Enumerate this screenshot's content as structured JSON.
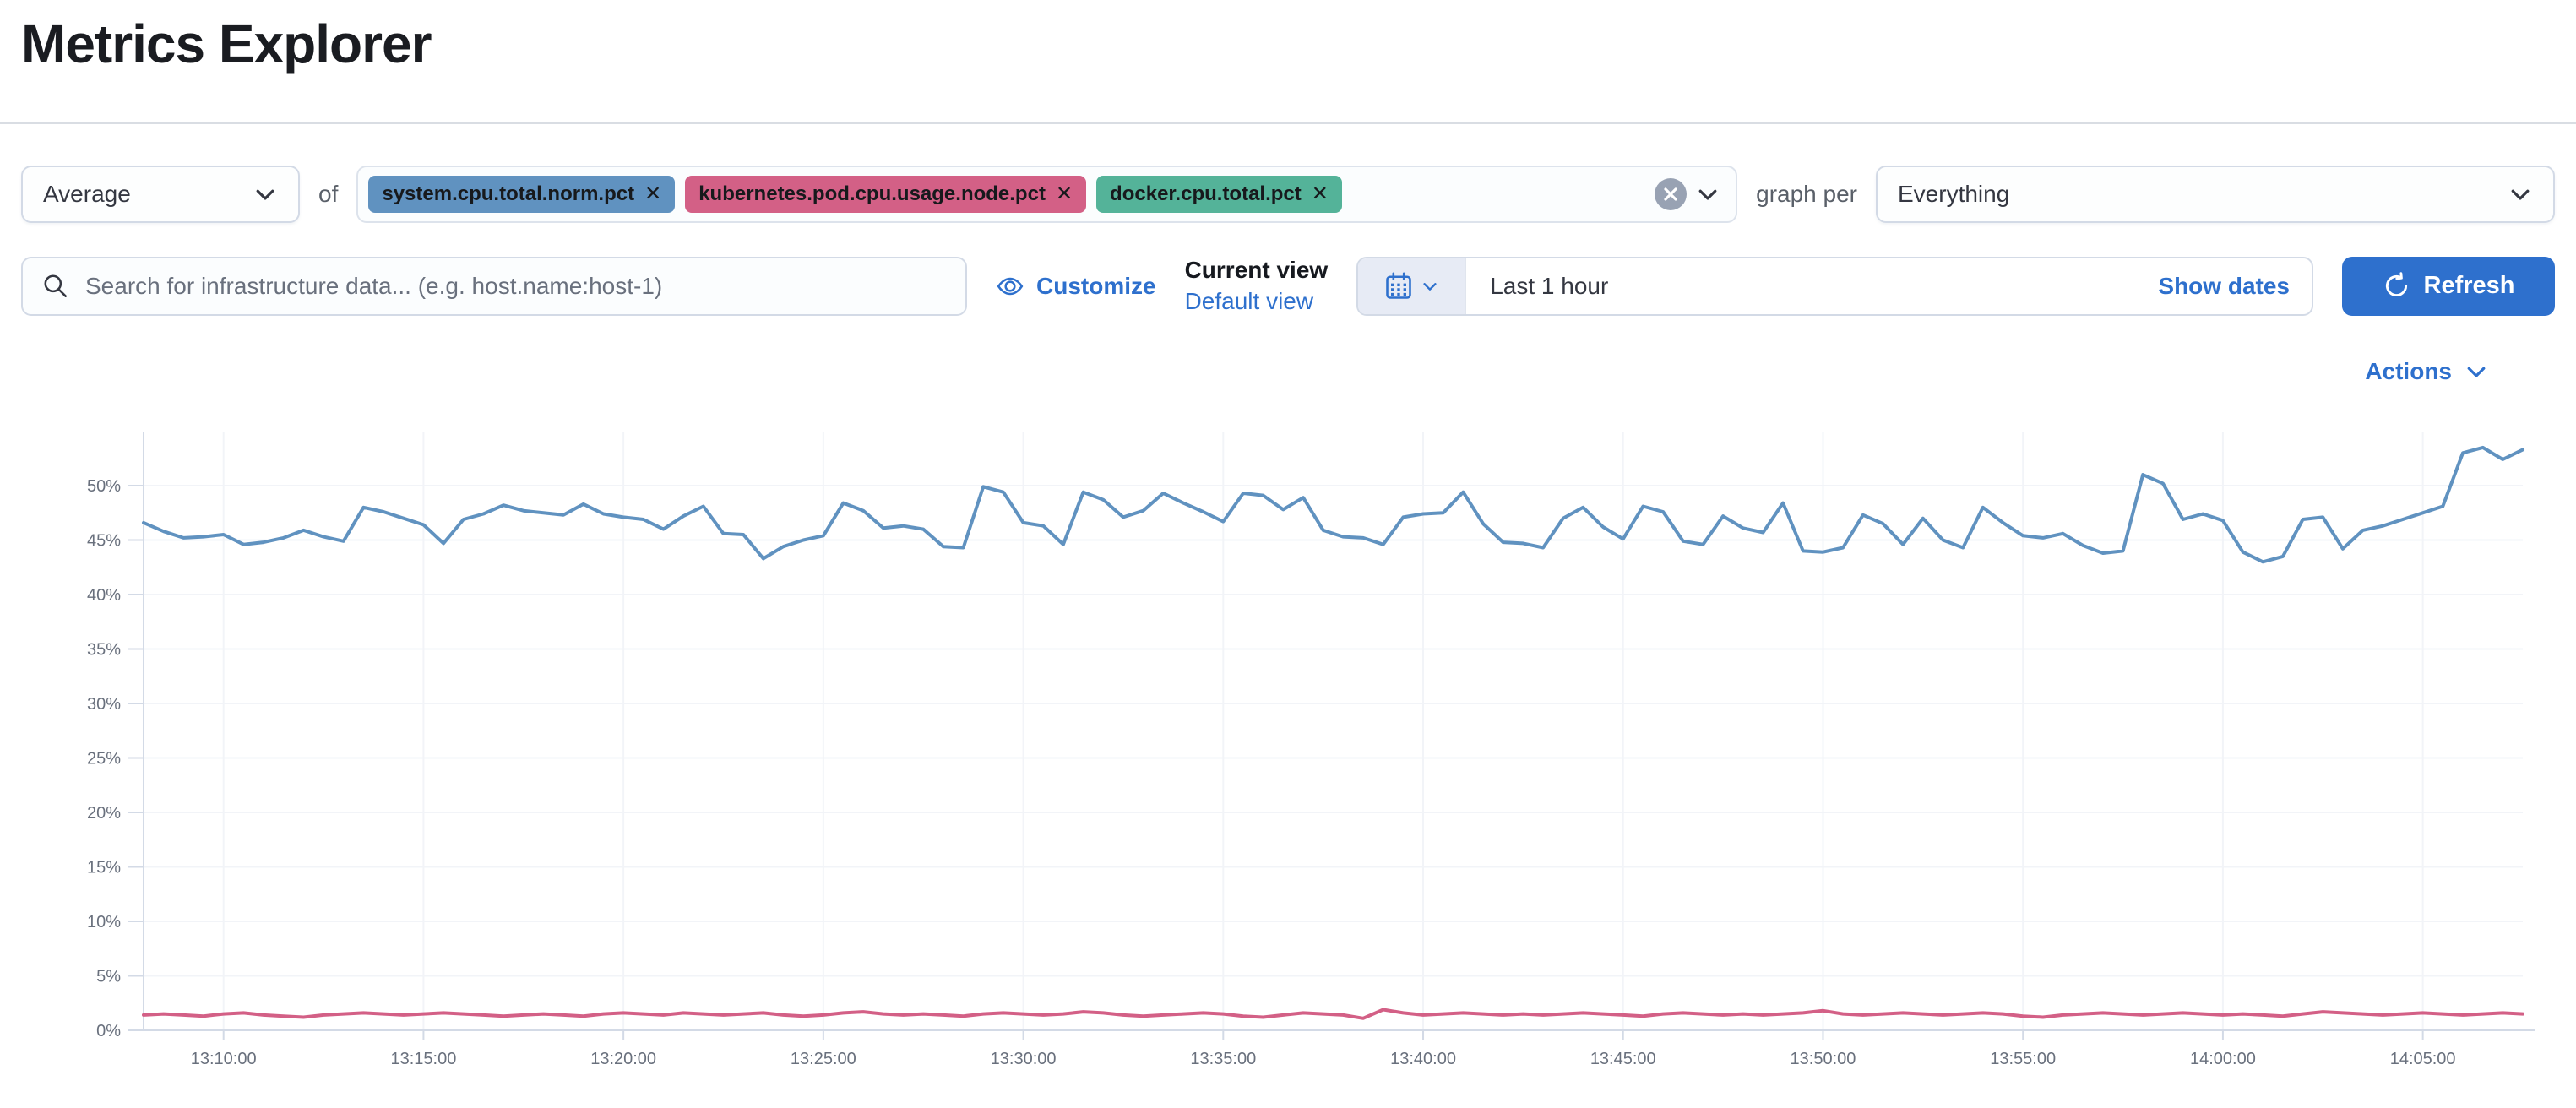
{
  "colors": {
    "link_blue": "#2e70cd",
    "primary_button": "#2e70cd",
    "pill_blue": "#6092C0",
    "pill_pink": "#D36086",
    "pill_green": "#54B399",
    "axis_text": "#69707d",
    "grid_line": "#f2f4f8",
    "axis_line": "#d3dae6"
  },
  "header": {
    "title": "Metrics Explorer"
  },
  "toolbar": {
    "aggregation_value": "Average",
    "of_label": "of",
    "metrics": [
      {
        "label": "system.cpu.total.norm.pct",
        "color": "#6092C0"
      },
      {
        "label": "kubernetes.pod.cpu.usage.node.pct",
        "color": "#D36086"
      },
      {
        "label": "docker.cpu.total.pct",
        "color": "#54B399"
      }
    ],
    "graph_per_label": "graph per",
    "group_by_value": "Everything"
  },
  "search": {
    "placeholder": "Search for infrastructure data... (e.g. host.name:host-1)"
  },
  "view_controls": {
    "customize_label": "Customize",
    "current_view_label": "Current view",
    "default_view_label": "Default view"
  },
  "time_picker": {
    "range_label": "Last 1 hour",
    "show_dates_label": "Show dates",
    "refresh_label": "Refresh"
  },
  "chart": {
    "actions_label": "Actions"
  },
  "chart_data": {
    "type": "line",
    "title": "",
    "xlabel": "",
    "ylabel": "",
    "x_start": "13:08:00",
    "x_interval_seconds": 30,
    "x_tick_labels": [
      "13:10:00",
      "13:15:00",
      "13:20:00",
      "13:25:00",
      "13:30:00",
      "13:35:00",
      "13:40:00",
      "13:45:00",
      "13:50:00",
      "13:55:00",
      "14:00:00",
      "14:05:00"
    ],
    "y_ticks_pct": [
      0,
      5,
      10,
      15,
      20,
      25,
      30,
      35,
      40,
      45,
      50
    ],
    "ylim": [
      0,
      55
    ],
    "grid": "faint",
    "legend": "none",
    "series": [
      {
        "name": "system.cpu.total.norm.pct (avg)",
        "color": "#6092C0",
        "unit": "%",
        "values": [
          46.6,
          45.8,
          45.2,
          45.3,
          45.5,
          44.6,
          44.8,
          45.2,
          45.9,
          45.3,
          44.9,
          48.0,
          47.6,
          47.0,
          46.4,
          44.7,
          46.9,
          47.4,
          48.2,
          47.7,
          47.5,
          47.3,
          48.3,
          47.4,
          47.1,
          46.9,
          46.0,
          47.2,
          48.1,
          45.6,
          45.5,
          43.3,
          44.4,
          45.0,
          45.4,
          48.4,
          47.7,
          46.1,
          46.3,
          46.0,
          44.4,
          44.3,
          49.9,
          49.4,
          46.6,
          46.3,
          44.6,
          49.4,
          48.7,
          47.1,
          47.7,
          49.3,
          48.4,
          47.6,
          46.7,
          49.3,
          49.1,
          47.8,
          48.9,
          45.9,
          45.3,
          45.2,
          44.6,
          47.1,
          47.4,
          47.5,
          49.4,
          46.5,
          44.8,
          44.7,
          44.3,
          47.0,
          48.0,
          46.2,
          45.1,
          48.1,
          47.6,
          44.9,
          44.6,
          47.2,
          46.1,
          45.7,
          48.4,
          44.0,
          43.9,
          44.3,
          47.3,
          46.5,
          44.6,
          47.0,
          45.0,
          44.3,
          48.0,
          46.6,
          45.4,
          45.2,
          45.6,
          44.5,
          43.8,
          44.0,
          51.0,
          50.2,
          46.9,
          47.4,
          46.8,
          43.9,
          43.0,
          43.5,
          46.9,
          47.1,
          44.2,
          45.9,
          46.3,
          46.9,
          47.5,
          48.1,
          53.0,
          53.5,
          52.4,
          53.3
        ]
      },
      {
        "name": "kubernetes.pod.cpu.usage.node.pct (avg)",
        "color": "#D36086",
        "unit": "%",
        "values": [
          1.4,
          1.5,
          1.4,
          1.3,
          1.5,
          1.6,
          1.4,
          1.3,
          1.2,
          1.4,
          1.5,
          1.6,
          1.5,
          1.4,
          1.5,
          1.6,
          1.5,
          1.4,
          1.3,
          1.4,
          1.5,
          1.4,
          1.3,
          1.5,
          1.6,
          1.5,
          1.4,
          1.6,
          1.5,
          1.4,
          1.5,
          1.6,
          1.4,
          1.3,
          1.4,
          1.6,
          1.7,
          1.5,
          1.4,
          1.5,
          1.4,
          1.3,
          1.5,
          1.6,
          1.5,
          1.4,
          1.5,
          1.7,
          1.6,
          1.4,
          1.3,
          1.4,
          1.5,
          1.6,
          1.5,
          1.3,
          1.2,
          1.4,
          1.6,
          1.5,
          1.4,
          1.1,
          1.9,
          1.6,
          1.4,
          1.5,
          1.6,
          1.5,
          1.4,
          1.5,
          1.4,
          1.5,
          1.6,
          1.5,
          1.4,
          1.3,
          1.5,
          1.6,
          1.5,
          1.4,
          1.5,
          1.4,
          1.5,
          1.6,
          1.8,
          1.5,
          1.4,
          1.5,
          1.6,
          1.5,
          1.4,
          1.5,
          1.6,
          1.5,
          1.3,
          1.2,
          1.4,
          1.5,
          1.6,
          1.5,
          1.4,
          1.5,
          1.6,
          1.5,
          1.4,
          1.5,
          1.4,
          1.3,
          1.5,
          1.7,
          1.6,
          1.5,
          1.4,
          1.5,
          1.6,
          1.5,
          1.4,
          1.5,
          1.6,
          1.5
        ]
      }
    ]
  }
}
